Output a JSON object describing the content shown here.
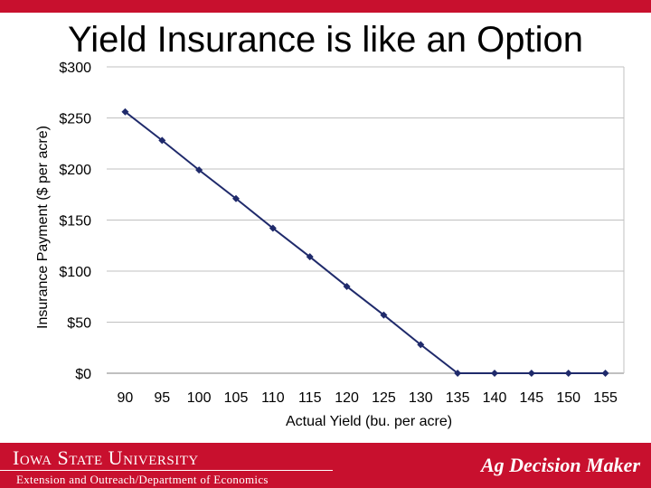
{
  "slide": {
    "title": "Yield Insurance is like an Option"
  },
  "footer": {
    "university": "Iowa State University",
    "department": "Extension and Outreach/Department of Economics",
    "brand": "Ag Decision Maker"
  },
  "colors": {
    "accent": "#c8102e",
    "series": "#1f2a6b",
    "grid": "#c0c0c0"
  },
  "chart_data": {
    "type": "line",
    "title": "",
    "xlabel": "Actual Yield (bu. per acre)",
    "ylabel": "Insurance Payment ($ per acre)",
    "x": [
      90,
      95,
      100,
      105,
      110,
      115,
      120,
      125,
      130,
      135,
      140,
      145,
      150,
      155
    ],
    "series": [
      {
        "name": "Insurance Payment",
        "values": [
          256,
          228,
          199,
          171,
          142,
          114,
          85,
          57,
          28,
          0,
          0,
          0,
          0,
          0
        ]
      }
    ],
    "ylim": [
      0,
      300
    ],
    "yticks": [
      0,
      50,
      100,
      150,
      200,
      250,
      300
    ],
    "ytick_labels": [
      "$0",
      "$50",
      "$100",
      "$150",
      "$200",
      "$250",
      "$300"
    ],
    "xtick_labels": [
      "90",
      "95",
      "100",
      "105",
      "110",
      "115",
      "120",
      "125",
      "130",
      "135",
      "140",
      "145",
      "150",
      "155"
    ],
    "grid": true,
    "legend": "none"
  }
}
